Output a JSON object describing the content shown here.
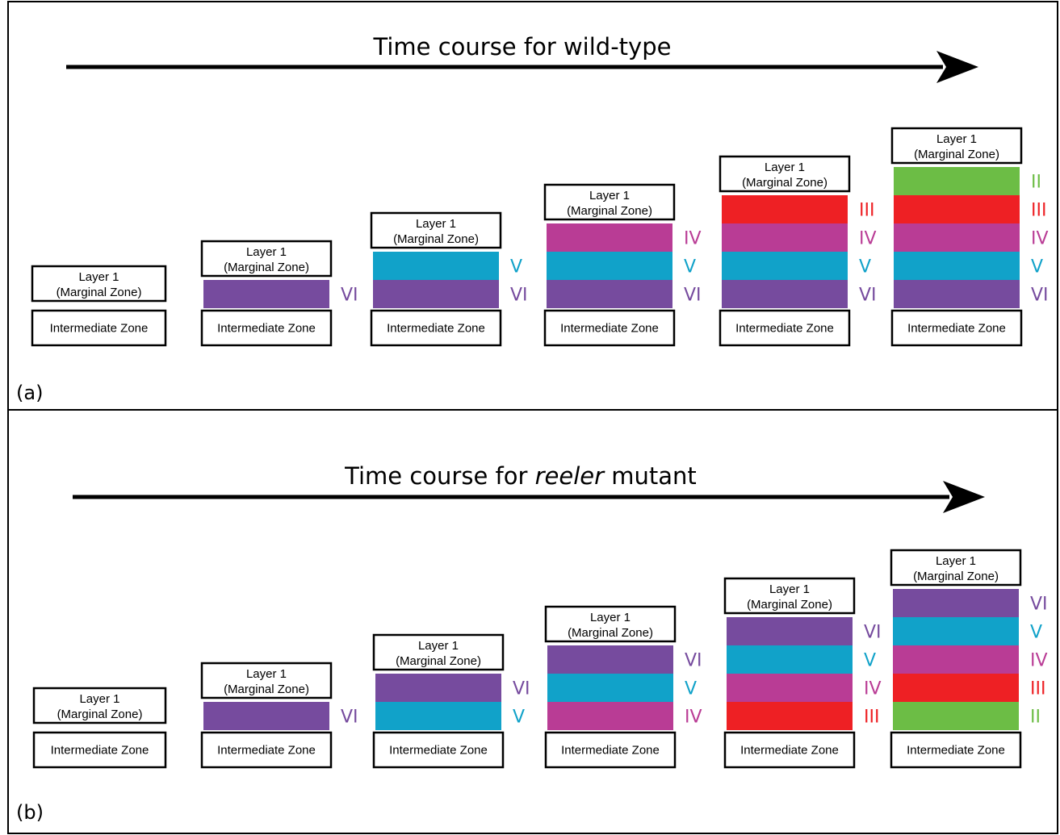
{
  "zones": {
    "layer1_line1": "Layer 1",
    "layer1_line2": "(Marginal Zone)",
    "intermediate": "Intermediate Zone"
  },
  "layer_colors": {
    "II": "#6cbd45",
    "III": "#ee2024",
    "IV": "#b93c95",
    "V": "#11a2c9",
    "VI": "#764b9e"
  },
  "panels": [
    {
      "label": "(a)",
      "title": {
        "prefix": "Time course for ",
        "emphasis": "",
        "suffix": "wild-type"
      },
      "stages": [
        {
          "layers": []
        },
        {
          "layers": [
            "VI"
          ]
        },
        {
          "layers": [
            "V",
            "VI"
          ]
        },
        {
          "layers": [
            "IV",
            "V",
            "VI"
          ]
        },
        {
          "layers": [
            "III",
            "IV",
            "V",
            "VI"
          ]
        },
        {
          "layers": [
            "II",
            "III",
            "IV",
            "V",
            "VI"
          ]
        }
      ]
    },
    {
      "label": "(b)",
      "title": {
        "prefix": "Time course for ",
        "emphasis": "reeler",
        "suffix": " mutant"
      },
      "stages": [
        {
          "layers": []
        },
        {
          "layers": [
            "VI"
          ]
        },
        {
          "layers": [
            "VI",
            "V"
          ]
        },
        {
          "layers": [
            "VI",
            "V",
            "IV"
          ]
        },
        {
          "layers": [
            "VI",
            "V",
            "IV",
            "III"
          ]
        },
        {
          "layers": [
            "VI",
            "V",
            "IV",
            "III",
            "II"
          ]
        }
      ]
    }
  ]
}
